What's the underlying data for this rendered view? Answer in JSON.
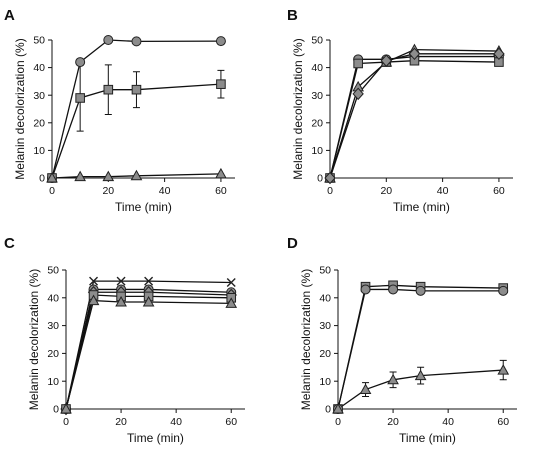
{
  "colors": {
    "marker_fill": "#8c8c8c",
    "marker_stroke": "#222222",
    "line": "#111111",
    "axis": "#111111"
  },
  "chart_data": [
    {
      "panel_label": "A",
      "type": "line",
      "xlabel": "Time (min)",
      "ylabel": "Melanin decolorization (%)",
      "xlim": [
        0,
        65
      ],
      "ylim": [
        0,
        50
      ],
      "xticks": [
        0,
        20,
        40,
        60
      ],
      "yticks": [
        0,
        10,
        20,
        30,
        40,
        50
      ],
      "grid": false,
      "legend": "none",
      "x": [
        0,
        10,
        20,
        30,
        60
      ],
      "series": [
        {
          "marker": "circle",
          "values": [
            0,
            42,
            50,
            49.5,
            49.6
          ],
          "errors": [
            0,
            0,
            0,
            0,
            0
          ]
        },
        {
          "marker": "square",
          "values": [
            0,
            29,
            32,
            32,
            34
          ],
          "errors": [
            0,
            12,
            9,
            6.5,
            5
          ]
        },
        {
          "marker": "triangle",
          "values": [
            0,
            0.5,
            0.5,
            0.8,
            1.5
          ],
          "errors": [
            0,
            0,
            0,
            0,
            0
          ]
        }
      ]
    },
    {
      "panel_label": "B",
      "type": "line",
      "xlabel": "Time (min)",
      "ylabel": "Melanin decolorization (%)",
      "xlim": [
        0,
        65
      ],
      "ylim": [
        0,
        50
      ],
      "xticks": [
        0,
        20,
        40,
        60
      ],
      "yticks": [
        0,
        10,
        20,
        30,
        40,
        50
      ],
      "grid": false,
      "legend": "none",
      "x": [
        0,
        10,
        20,
        30,
        60
      ],
      "series": [
        {
          "marker": "circle",
          "values": [
            0,
            43,
            43,
            44,
            44
          ]
        },
        {
          "marker": "square",
          "values": [
            0,
            41.5,
            42,
            42.5,
            42
          ]
        },
        {
          "marker": "triangle",
          "values": [
            0,
            33,
            42,
            46.5,
            46
          ]
        },
        {
          "marker": "diamond",
          "values": [
            0,
            30.5,
            42.5,
            45,
            45
          ]
        }
      ]
    },
    {
      "panel_label": "C",
      "type": "line",
      "xlabel": "Time (min)",
      "ylabel": "Melanin decolorization (%)",
      "xlim": [
        0,
        65
      ],
      "ylim": [
        0,
        50
      ],
      "xticks": [
        0,
        20,
        40,
        60
      ],
      "yticks": [
        0,
        10,
        20,
        30,
        40,
        50
      ],
      "grid": false,
      "legend": "none",
      "x": [
        0,
        10,
        20,
        30,
        60
      ],
      "series": [
        {
          "marker": "cross",
          "values": [
            0,
            46,
            46,
            46,
            45.5
          ]
        },
        {
          "marker": "circle",
          "values": [
            0,
            43,
            43,
            43,
            42
          ]
        },
        {
          "marker": "diamond",
          "values": [
            0,
            42,
            42,
            42,
            41
          ]
        },
        {
          "marker": "square",
          "values": [
            0,
            41,
            40.5,
            40.5,
            40
          ]
        },
        {
          "marker": "triangle",
          "values": [
            0,
            39,
            38.5,
            38.5,
            38
          ]
        }
      ]
    },
    {
      "panel_label": "D",
      "type": "line",
      "xlabel": "Time (min)",
      "ylabel": "Melanin decolorization (%)",
      "xlim": [
        0,
        65
      ],
      "ylim": [
        0,
        50
      ],
      "xticks": [
        0,
        20,
        40,
        60
      ],
      "yticks": [
        0,
        10,
        20,
        30,
        40,
        50
      ],
      "grid": false,
      "legend": "none",
      "x": [
        0,
        10,
        20,
        30,
        60
      ],
      "series": [
        {
          "marker": "square",
          "values": [
            0,
            44,
            44.5,
            44,
            43.5
          ],
          "errors": [
            0,
            0,
            0,
            0,
            0
          ]
        },
        {
          "marker": "circle",
          "values": [
            0,
            43,
            43,
            42.5,
            42.5
          ],
          "errors": [
            0,
            0,
            0,
            0,
            0
          ]
        },
        {
          "marker": "triangle",
          "values": [
            0,
            7,
            10.5,
            12,
            14
          ],
          "errors": [
            0,
            2.5,
            2.8,
            3,
            3.5
          ]
        }
      ]
    }
  ]
}
